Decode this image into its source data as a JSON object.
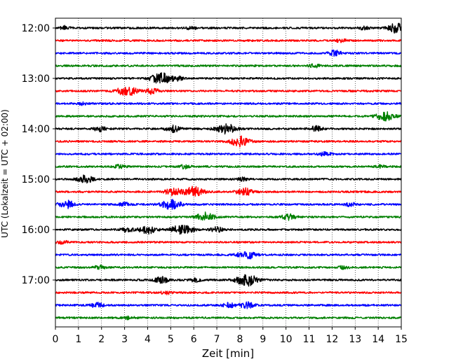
{
  "chart_data": {
    "type": "line",
    "subtype": "helicorder-seismogram",
    "title": "",
    "xlabel": "Zeit  [min]",
    "ylabel": "UTC (Lokalzeit = UTC + 02:00)",
    "xlim": [
      0,
      15
    ],
    "x_ticks": [
      "0",
      "1",
      "2",
      "3",
      "4",
      "5",
      "6",
      "7",
      "8",
      "9",
      "10",
      "11",
      "12",
      "13",
      "14",
      "15"
    ],
    "y_tick_labels": [
      "12:00",
      "13:00",
      "14:00",
      "15:00",
      "16:00",
      "17:00"
    ],
    "grid": "vertical-dotted",
    "trace_interval_min": 15,
    "trace_colors": [
      "#000000",
      "#ff0000",
      "#0000ff",
      "#008000"
    ],
    "traces": [
      {
        "start": "12:00",
        "events": [
          {
            "t": 14.9,
            "amp": 1.8
          },
          {
            "t": 0.4,
            "amp": 0.6
          },
          {
            "t": 5.9,
            "amp": 0.5
          },
          {
            "t": 13.4,
            "amp": 0.5
          }
        ]
      },
      {
        "start": "12:15",
        "events": [
          {
            "t": 12.4,
            "amp": 0.6
          }
        ]
      },
      {
        "start": "12:30",
        "events": [
          {
            "t": 12.1,
            "amp": 0.9
          }
        ]
      },
      {
        "start": "12:45",
        "events": [
          {
            "t": 11.2,
            "amp": 0.6
          }
        ]
      },
      {
        "start": "13:00",
        "events": [
          {
            "t": 4.6,
            "amp": 1.8
          },
          {
            "t": 5.3,
            "amp": 0.6
          }
        ]
      },
      {
        "start": "13:15",
        "events": [
          {
            "t": 3.1,
            "amp": 1.6
          },
          {
            "t": 4.2,
            "amp": 1.0
          }
        ]
      },
      {
        "start": "13:30",
        "events": [
          {
            "t": 1.2,
            "amp": 0.4
          }
        ]
      },
      {
        "start": "13:45",
        "events": [
          {
            "t": 14.3,
            "amp": 1.4
          }
        ]
      },
      {
        "start": "14:00",
        "events": [
          {
            "t": 7.4,
            "amp": 1.6
          },
          {
            "t": 5.1,
            "amp": 1.0
          },
          {
            "t": 1.9,
            "amp": 0.8
          },
          {
            "t": 11.3,
            "amp": 0.8
          }
        ]
      },
      {
        "start": "14:15",
        "events": [
          {
            "t": 8.0,
            "amp": 1.6
          }
        ]
      },
      {
        "start": "14:30",
        "events": [
          {
            "t": 11.7,
            "amp": 0.7
          }
        ]
      },
      {
        "start": "14:45",
        "events": [
          {
            "t": 2.8,
            "amp": 0.6
          },
          {
            "t": 5.6,
            "amp": 0.6
          },
          {
            "t": 14.1,
            "amp": 0.5
          }
        ]
      },
      {
        "start": "15:00",
        "events": [
          {
            "t": 1.3,
            "amp": 1.2
          },
          {
            "t": 8.1,
            "amp": 0.5
          }
        ]
      },
      {
        "start": "15:15",
        "events": [
          {
            "t": 6.0,
            "amp": 1.6
          },
          {
            "t": 8.2,
            "amp": 1.2
          },
          {
            "t": 5.1,
            "amp": 1.2
          }
        ]
      },
      {
        "start": "15:30",
        "events": [
          {
            "t": 0.5,
            "amp": 1.2
          },
          {
            "t": 5.0,
            "amp": 1.6
          },
          {
            "t": 3.0,
            "amp": 0.6
          },
          {
            "t": 12.8,
            "amp": 0.6
          }
        ]
      },
      {
        "start": "15:45",
        "events": [
          {
            "t": 6.5,
            "amp": 1.4
          },
          {
            "t": 10.1,
            "amp": 1.0
          }
        ]
      },
      {
        "start": "16:00",
        "events": [
          {
            "t": 5.5,
            "amp": 1.8
          },
          {
            "t": 4.0,
            "amp": 1.3
          },
          {
            "t": 3.1,
            "amp": 0.8
          },
          {
            "t": 7.0,
            "amp": 0.8
          }
        ]
      },
      {
        "start": "16:15",
        "events": [
          {
            "t": 0.3,
            "amp": 0.6
          }
        ]
      },
      {
        "start": "16:30",
        "events": [
          {
            "t": 8.3,
            "amp": 1.4
          }
        ]
      },
      {
        "start": "16:45",
        "events": [
          {
            "t": 1.9,
            "amp": 0.6
          },
          {
            "t": 12.5,
            "amp": 0.5
          }
        ]
      },
      {
        "start": "17:00",
        "events": [
          {
            "t": 8.3,
            "amp": 1.9
          },
          {
            "t": 4.6,
            "amp": 1.0
          },
          {
            "t": 6.1,
            "amp": 0.6
          }
        ]
      },
      {
        "start": "17:15",
        "events": [
          {
            "t": 4.8,
            "amp": 0.6
          }
        ]
      },
      {
        "start": "17:30",
        "events": [
          {
            "t": 1.8,
            "amp": 0.8
          },
          {
            "t": 7.5,
            "amp": 0.8
          },
          {
            "t": 8.3,
            "amp": 1.0
          }
        ]
      },
      {
        "start": "17:45",
        "events": [
          {
            "t": 3.2,
            "amp": 0.5
          }
        ]
      }
    ]
  }
}
